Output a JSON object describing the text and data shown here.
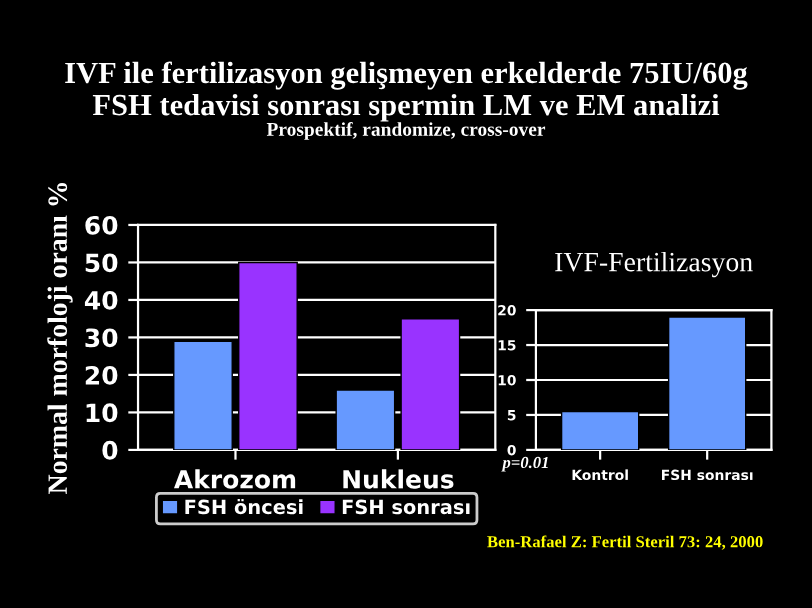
{
  "chart_data": [
    {
      "type": "bar",
      "title": "IVF ile fertilizasyon gelişmeyen erkelderde 75IU/60g\nFSH tedavisi sonrası spermin LM ve EM analizi",
      "subtitle": "Prospektif, randomize, cross-over",
      "ylabel": "Normal morfoloji oranı %",
      "categories": [
        "Akrozom",
        "Nukleus"
      ],
      "series": [
        {
          "name": "FSH öncesi",
          "color": "#6699ff",
          "values": [
            29,
            16
          ]
        },
        {
          "name": "FSH sonrası",
          "color": "#9933ff",
          "values": [
            50,
            35
          ]
        }
      ],
      "ylim": [
        0,
        60
      ],
      "yticks": [
        0,
        10,
        20,
        30,
        40,
        50,
        60
      ],
      "grid": "y",
      "legend": "bottom",
      "annotations": [
        "p=0.01",
        "Ben-Rafael Z: Fertil Steril 73: 24, 2000"
      ]
    },
    {
      "type": "bar",
      "title": "IVF-Fertilizasyon",
      "categories": [
        "Kontrol",
        "FSH sonrası"
      ],
      "values": [
        5.5,
        19
      ],
      "color": "#6699ff",
      "ylim": [
        0,
        20
      ],
      "yticks": [
        0,
        5,
        10,
        15,
        20
      ],
      "grid": "y"
    }
  ]
}
